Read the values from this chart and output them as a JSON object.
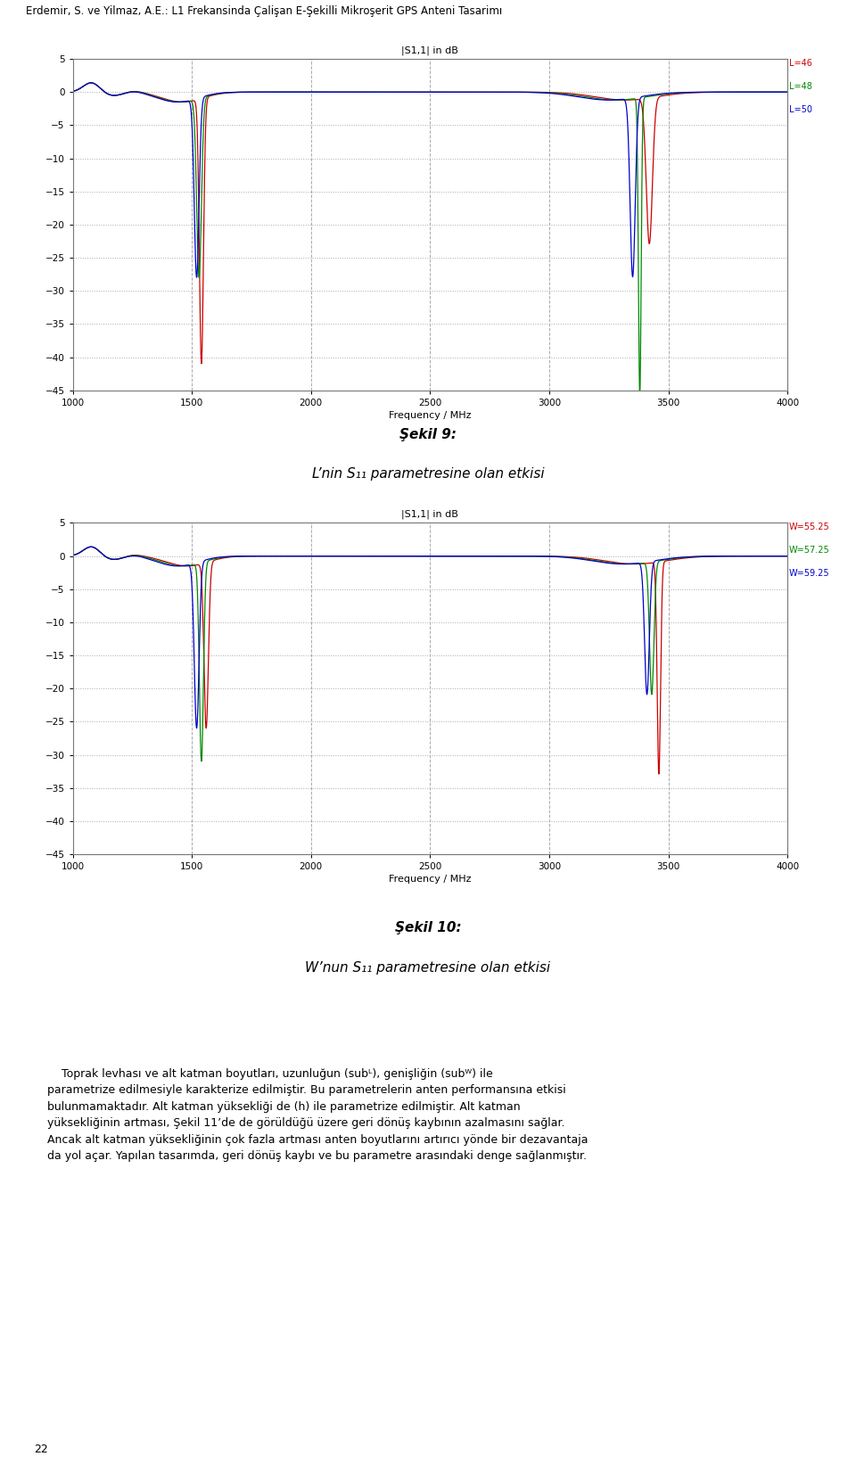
{
  "header": "Erdemir, S. ve Yilmaz, A.E.: L1 Frekansinda Çalişan E-Şekilli Mikroşerit GPS Anteni Tasarimı",
  "fig1_title": "|S1,1| in dB",
  "fig1_xlabel": "Frequency / MHz",
  "fig1_legend": [
    "L=46",
    "L=48",
    "L=50"
  ],
  "fig1_colors": [
    "#cc0000",
    "#008800",
    "#0000cc"
  ],
  "fig2_title": "|S1,1| in dB",
  "fig2_xlabel": "Frequency / MHz",
  "fig2_legend": [
    "W=55.25",
    "W=57.25",
    "W=59.25"
  ],
  "fig2_colors": [
    "#cc0000",
    "#008800",
    "#0000cc"
  ],
  "caption1_line1": "Şekil 9:",
  "caption1_line2": "L’nin S₁₁ parametresine olan etkisi",
  "caption2_line1": "Şekil 10:",
  "caption2_line2": "W’nun S₁₁ parametresine olan etkisi",
  "page_number": "22",
  "xmin": 1000,
  "xmax": 4000,
  "ymin": -45,
  "ymax": 5,
  "yticks": [
    5,
    0,
    -5,
    -10,
    -15,
    -20,
    -25,
    -30,
    -35,
    -40,
    -45
  ],
  "xticks": [
    1000,
    1500,
    2000,
    2500,
    3000,
    3500,
    4000
  ],
  "bg_color": "#ffffff",
  "plot_bg": "#ffffff",
  "grid_dot_color": "#aaaaaa",
  "grid_dash_color": "#aaaaaa"
}
